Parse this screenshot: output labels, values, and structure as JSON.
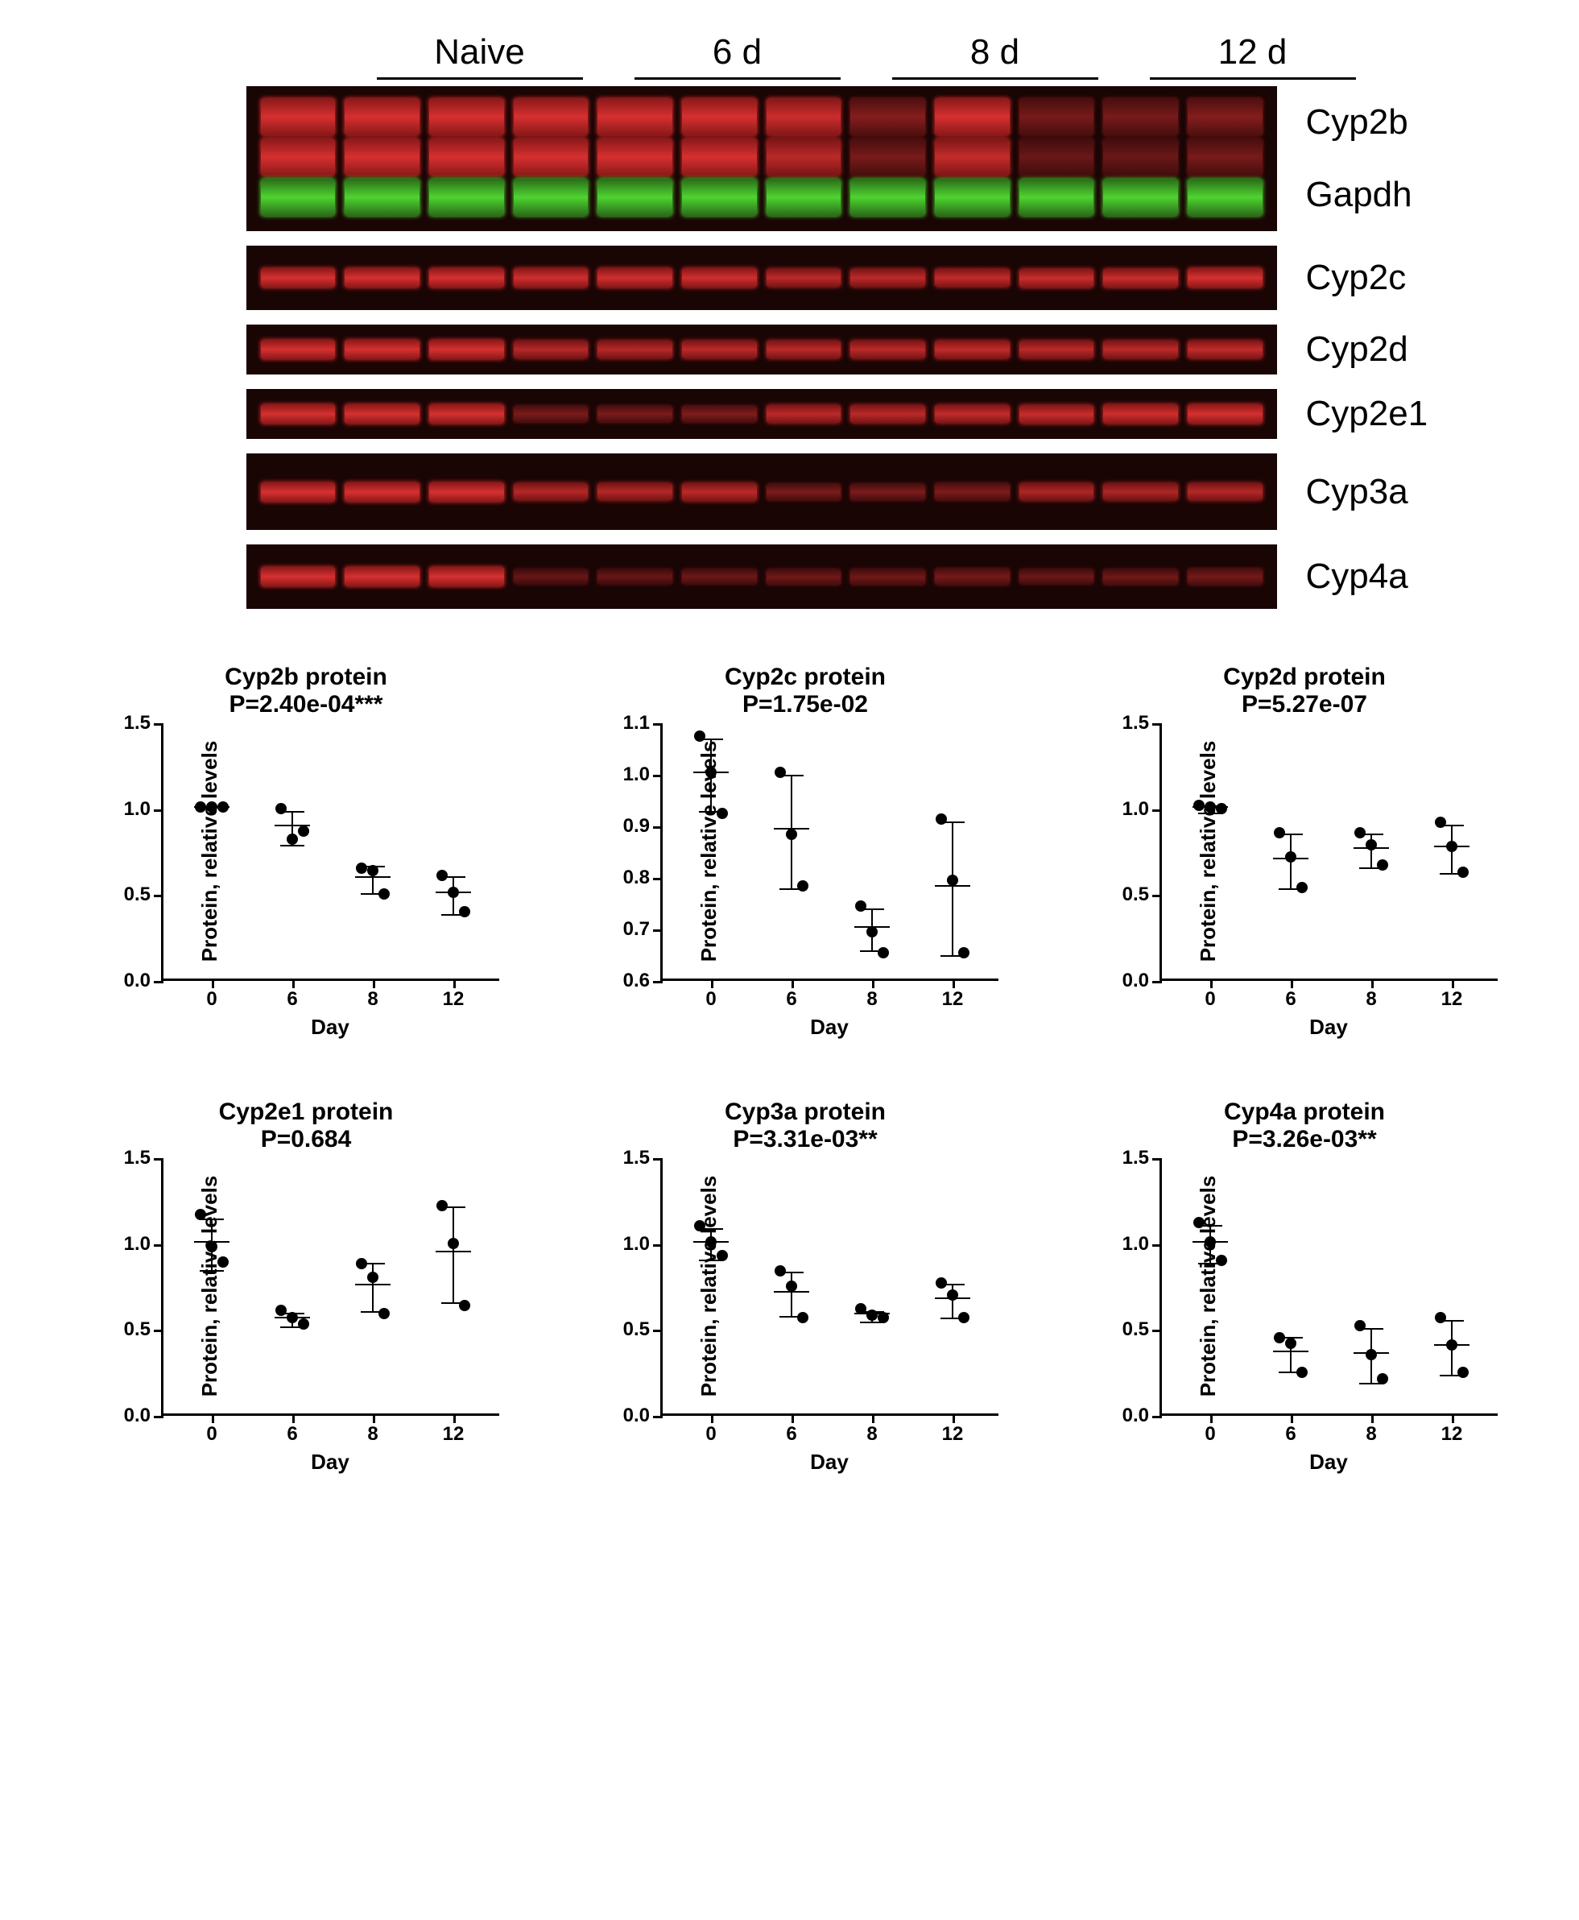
{
  "blot": {
    "group_labels": [
      "Naive",
      "6 d",
      "8 d",
      "12 d"
    ],
    "rows": [
      {
        "labels": [
          "Cyp2b",
          "Gapdh"
        ],
        "type": "double",
        "red_intensity": [
          1,
          1,
          1,
          1,
          1,
          1,
          0.85,
          0.7,
          0.9,
          0.6,
          0.6,
          0.7
        ]
      },
      {
        "labels": [
          "Cyp2c"
        ],
        "type": "single",
        "h": "h-single",
        "red_intensity": [
          1,
          1,
          1,
          0.95,
          0.95,
          0.95,
          0.8,
          0.8,
          0.85,
          0.9,
          0.9,
          1
        ]
      },
      {
        "labels": [
          "Cyp2d"
        ],
        "type": "single",
        "h": "h-single-thin",
        "red_intensity": [
          1,
          1,
          1,
          0.75,
          0.75,
          0.8,
          0.8,
          0.8,
          0.85,
          0.8,
          0.8,
          0.85
        ]
      },
      {
        "labels": [
          "Cyp2e1"
        ],
        "type": "single",
        "h": "h-single-thin",
        "red_intensity": [
          1,
          1,
          1,
          0.6,
          0.6,
          0.65,
          0.8,
          0.8,
          0.85,
          0.9,
          0.95,
          1
        ]
      },
      {
        "labels": [
          "Cyp3a"
        ],
        "type": "single",
        "h": "h-single-med",
        "red_intensity": [
          1,
          1,
          1,
          0.75,
          0.75,
          0.8,
          0.6,
          0.6,
          0.65,
          0.7,
          0.7,
          0.75
        ]
      },
      {
        "labels": [
          "Cyp4a"
        ],
        "type": "single",
        "h": "h-single",
        "red_intensity": [
          1,
          1,
          1,
          0.4,
          0.4,
          0.45,
          0.5,
          0.5,
          0.55,
          0.45,
          0.5,
          0.55
        ]
      }
    ]
  },
  "chart_common": {
    "x_label": "Day",
    "y_label": "Protein, relative levels",
    "x_categories": [
      "0",
      "6",
      "8",
      "12"
    ],
    "point_color": "#000000",
    "axis_color": "#000000",
    "background": "#ffffff"
  },
  "charts": [
    {
      "title": "Cyp2b protein",
      "pvalue": "P=2.40e-04***",
      "ymin": 0.0,
      "ymax": 1.5,
      "ystep": 0.5,
      "series": [
        {
          "x": 0,
          "points": [
            1.0,
            1.0,
            1.0
          ],
          "mean": 1.0,
          "sd": 0.0
        },
        {
          "x": 1,
          "points": [
            0.99,
            0.81,
            0.86
          ],
          "mean": 0.89,
          "sd": 0.1
        },
        {
          "x": 2,
          "points": [
            0.64,
            0.63,
            0.49
          ],
          "mean": 0.59,
          "sd": 0.08
        },
        {
          "x": 3,
          "points": [
            0.6,
            0.5,
            0.39
          ],
          "mean": 0.5,
          "sd": 0.11
        }
      ]
    },
    {
      "title": "Cyp2c protein",
      "pvalue": "P=1.75e-02",
      "ymin": 0.6,
      "ymax": 1.1,
      "ystep": 0.1,
      "series": [
        {
          "x": 0,
          "points": [
            1.07,
            1.0,
            0.92
          ],
          "mean": 1.0,
          "sd": 0.07
        },
        {
          "x": 1,
          "points": [
            1.0,
            0.88,
            0.78
          ],
          "mean": 0.89,
          "sd": 0.11
        },
        {
          "x": 2,
          "points": [
            0.74,
            0.69,
            0.65
          ],
          "mean": 0.7,
          "sd": 0.04
        },
        {
          "x": 3,
          "points": [
            0.91,
            0.79,
            0.65
          ],
          "mean": 0.78,
          "sd": 0.13
        }
      ]
    },
    {
      "title": "Cyp2d protein",
      "pvalue": "P=5.27e-07",
      "ymin": 0.0,
      "ymax": 1.5,
      "ystep": 0.5,
      "series": [
        {
          "x": 0,
          "points": [
            1.01,
            1.0,
            0.99
          ],
          "mean": 1.0,
          "sd": 0.02
        },
        {
          "x": 1,
          "points": [
            0.85,
            0.71,
            0.53
          ],
          "mean": 0.7,
          "sd": 0.16
        },
        {
          "x": 2,
          "points": [
            0.85,
            0.78,
            0.66
          ],
          "mean": 0.76,
          "sd": 0.1
        },
        {
          "x": 3,
          "points": [
            0.91,
            0.77,
            0.62
          ],
          "mean": 0.77,
          "sd": 0.14
        }
      ]
    },
    {
      "title": "Cyp2e1 protein",
      "pvalue": "P=0.684",
      "ymin": 0.0,
      "ymax": 1.5,
      "ystep": 0.5,
      "series": [
        {
          "x": 0,
          "points": [
            1.16,
            0.97,
            0.88
          ],
          "mean": 1.0,
          "sd": 0.15
        },
        {
          "x": 1,
          "points": [
            0.6,
            0.56,
            0.52
          ],
          "mean": 0.56,
          "sd": 0.04
        },
        {
          "x": 2,
          "points": [
            0.87,
            0.79,
            0.58
          ],
          "mean": 0.75,
          "sd": 0.14
        },
        {
          "x": 3,
          "points": [
            1.21,
            0.99,
            0.63
          ],
          "mean": 0.94,
          "sd": 0.28
        }
      ]
    },
    {
      "title": "Cyp3a protein",
      "pvalue": "P=3.31e-03**",
      "ymin": 0.0,
      "ymax": 1.5,
      "ystep": 0.5,
      "series": [
        {
          "x": 0,
          "points": [
            1.09,
            1.0,
            0.92
          ],
          "mean": 1.0,
          "sd": 0.09
        },
        {
          "x": 1,
          "points": [
            0.83,
            0.74,
            0.56
          ],
          "mean": 0.71,
          "sd": 0.13
        },
        {
          "x": 2,
          "points": [
            0.61,
            0.57,
            0.56
          ],
          "mean": 0.58,
          "sd": 0.03
        },
        {
          "x": 3,
          "points": [
            0.76,
            0.69,
            0.56
          ],
          "mean": 0.67,
          "sd": 0.1
        }
      ]
    },
    {
      "title": "Cyp4a protein",
      "pvalue": "P=3.26e-03**",
      "ymin": 0.0,
      "ymax": 1.5,
      "ystep": 0.5,
      "series": [
        {
          "x": 0,
          "points": [
            1.11,
            1.0,
            0.89
          ],
          "mean": 1.0,
          "sd": 0.11
        },
        {
          "x": 1,
          "points": [
            0.44,
            0.41,
            0.24
          ],
          "mean": 0.36,
          "sd": 0.1
        },
        {
          "x": 2,
          "points": [
            0.51,
            0.34,
            0.2
          ],
          "mean": 0.35,
          "sd": 0.16
        },
        {
          "x": 3,
          "points": [
            0.56,
            0.4,
            0.24
          ],
          "mean": 0.4,
          "sd": 0.16
        }
      ]
    }
  ]
}
